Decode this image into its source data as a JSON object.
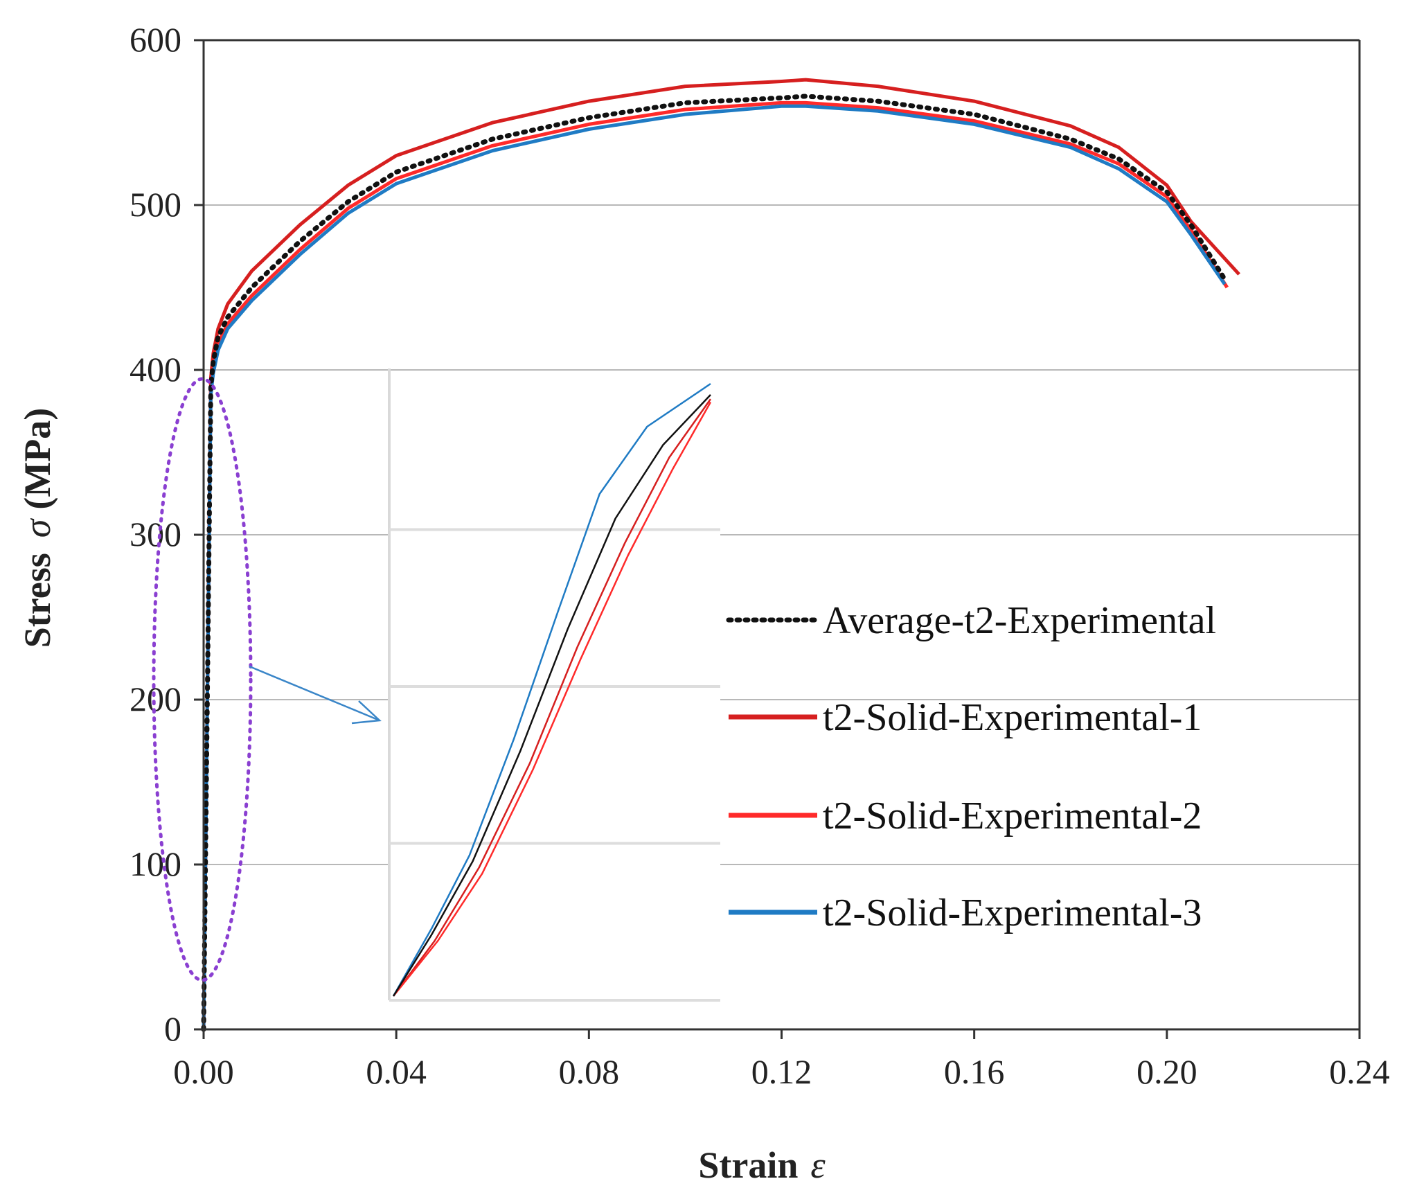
{
  "chart_data": {
    "type": "line",
    "title": "",
    "xlabel": "Strain",
    "xlabel_symbol": "ε",
    "ylabel": "Stress",
    "ylabel_symbol": "σ",
    "ylabel_unit": "(MPa)",
    "xlim": [
      0,
      0.24
    ],
    "ylim": [
      0,
      600
    ],
    "x_ticks": [
      "0.00",
      "0.04",
      "0.08",
      "0.12",
      "0.16",
      "0.20",
      "0.24"
    ],
    "y_ticks": [
      "0",
      "100",
      "200",
      "300",
      "400",
      "500",
      "600"
    ],
    "grid": "horizontal",
    "legend_position": "right",
    "series": [
      {
        "name": "Average-t2-Experimental",
        "color": "#111111",
        "style": "dotted",
        "x": [
          0,
          0.0015,
          0.002,
          0.003,
          0.005,
          0.01,
          0.02,
          0.03,
          0.04,
          0.06,
          0.08,
          0.1,
          0.12,
          0.125,
          0.14,
          0.16,
          0.18,
          0.19,
          0.2,
          0.205,
          0.212
        ],
        "y": [
          0,
          390,
          405,
          420,
          432,
          450,
          478,
          502,
          520,
          540,
          553,
          562,
          565,
          566,
          563,
          555,
          540,
          528,
          508,
          488,
          455
        ]
      },
      {
        "name": "t2-Solid-Experimental-1",
        "color": "#d61f1f",
        "style": "solid",
        "x": [
          0,
          0.0015,
          0.002,
          0.003,
          0.005,
          0.01,
          0.02,
          0.03,
          0.04,
          0.06,
          0.08,
          0.1,
          0.12,
          0.125,
          0.14,
          0.16,
          0.18,
          0.19,
          0.2,
          0.205,
          0.215
        ],
        "y": [
          0,
          395,
          410,
          425,
          440,
          460,
          488,
          512,
          530,
          550,
          563,
          572,
          575,
          576,
          572,
          563,
          548,
          535,
          512,
          490,
          458
        ]
      },
      {
        "name": "t2-Solid-Experimental-2",
        "color": "#ff2a2a",
        "style": "solid",
        "x": [
          0,
          0.0015,
          0.002,
          0.003,
          0.005,
          0.01,
          0.02,
          0.03,
          0.04,
          0.06,
          0.08,
          0.1,
          0.12,
          0.125,
          0.14,
          0.16,
          0.18,
          0.19,
          0.2,
          0.205,
          0.2125
        ],
        "y": [
          0,
          388,
          402,
          416,
          428,
          445,
          473,
          498,
          516,
          536,
          549,
          558,
          562,
          562,
          559,
          551,
          537,
          525,
          505,
          485,
          450
        ]
      },
      {
        "name": "t2-Solid-Experimental-3",
        "color": "#1f7bc4",
        "style": "solid",
        "x": [
          0,
          0.0015,
          0.002,
          0.003,
          0.005,
          0.01,
          0.02,
          0.03,
          0.04,
          0.06,
          0.08,
          0.1,
          0.12,
          0.125,
          0.14,
          0.16,
          0.18,
          0.19,
          0.2,
          0.205,
          0.212
        ],
        "y": [
          0,
          385,
          398,
          412,
          425,
          442,
          470,
          495,
          513,
          533,
          546,
          555,
          560,
          560,
          557,
          549,
          535,
          522,
          502,
          482,
          452
        ]
      }
    ],
    "annotations": [
      "zoom inset of elastic region (dotted ellipse with arrow)"
    ]
  }
}
